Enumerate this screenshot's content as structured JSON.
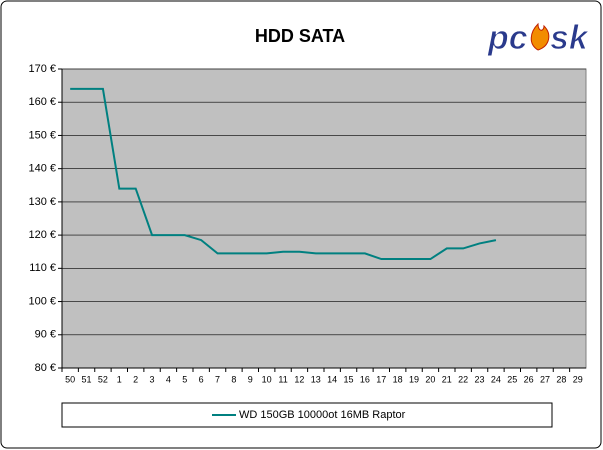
{
  "chart_data": {
    "type": "line",
    "title": "HDD SATA",
    "logo": [
      "pc",
      "sk"
    ],
    "categories": [
      "50",
      "51",
      "52",
      "1",
      "2",
      "3",
      "4",
      "5",
      "6",
      "7",
      "8",
      "9",
      "10",
      "11",
      "12",
      "13",
      "14",
      "15",
      "16",
      "17",
      "18",
      "19",
      "20",
      "21",
      "22",
      "23",
      "24",
      "25",
      "26",
      "27",
      "28",
      "29"
    ],
    "series": [
      {
        "name": "WD 150GB 10000ot 16MB Raptor",
        "color": "#008080",
        "values": [
          164,
          164,
          164,
          134,
          134,
          120,
          120,
          120,
          118.5,
          114.5,
          114.5,
          114.5,
          114.5,
          115,
          115,
          114.5,
          114.5,
          114.5,
          114.5,
          112.8,
          112.8,
          112.8,
          112.8,
          116,
          116,
          117.5,
          118.5,
          null,
          null,
          null,
          null,
          null
        ]
      }
    ],
    "ylim": [
      80,
      170
    ],
    "yticks": [
      {
        "value": 80,
        "label": "80 €"
      },
      {
        "value": 90,
        "label": "90 €"
      },
      {
        "value": 100,
        "label": "100 €"
      },
      {
        "value": 110,
        "label": "110 €"
      },
      {
        "value": 120,
        "label": "120 €"
      },
      {
        "value": 130,
        "label": "130 €"
      },
      {
        "value": 140,
        "label": "140 €"
      },
      {
        "value": 150,
        "label": "150 €"
      },
      {
        "value": 160,
        "label": "160 €"
      },
      {
        "value": 170,
        "label": "170 €"
      }
    ],
    "grid": true,
    "plot_background": "#c0c0c0"
  }
}
